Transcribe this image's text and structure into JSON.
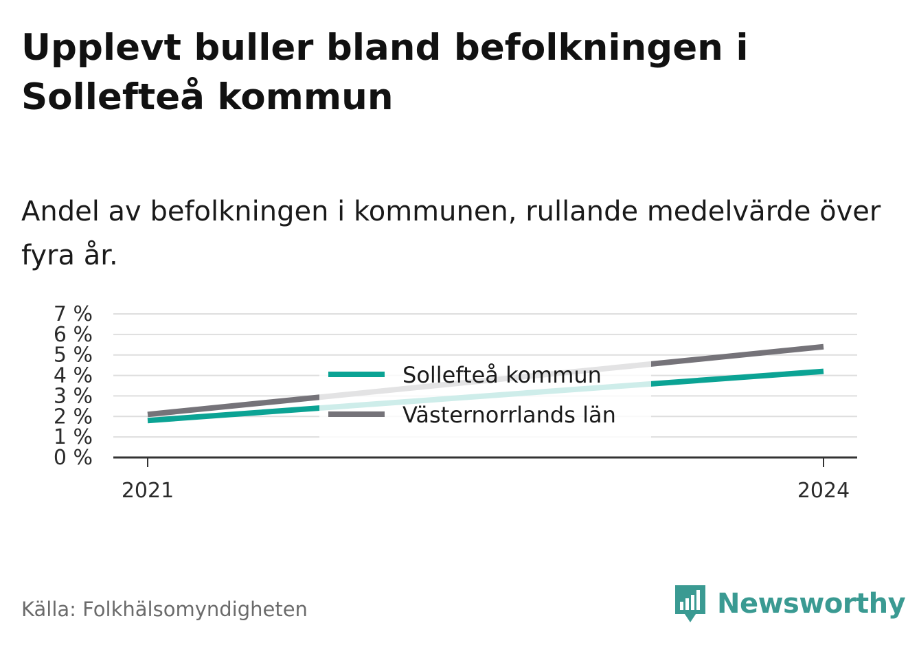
{
  "title": "Upplevt buller bland befolkningen i Sollefteå kommun",
  "subtitle": "Andel av befolkningen i kommunen, rullande medelvärde över fyra år.",
  "source": "Källa: Folkhälsomyndigheten",
  "brand": {
    "name": "Newsworthy",
    "icon": "newsworthy-logo-icon",
    "color": "#3a9a92"
  },
  "colors": {
    "grid": "#dedede",
    "axis": "#333333",
    "legend_bg": "#ffffff"
  },
  "chart_data": {
    "type": "line",
    "x": [
      "2021",
      "2024"
    ],
    "x_ticks": [
      "2021",
      "2024"
    ],
    "y_ticks": [
      "0 %",
      "1 %",
      "2 %",
      "3 %",
      "4 %",
      "5 %",
      "6 %",
      "7 %"
    ],
    "ylim": [
      0,
      7
    ],
    "grid": true,
    "legend_position": "center",
    "series": [
      {
        "name": "Sollefteå kommun",
        "values": [
          1.8,
          4.2
        ],
        "color": "#0ba394"
      },
      {
        "name": "Västernorrlands län",
        "values": [
          2.1,
          5.4
        ],
        "color": "#757379"
      }
    ]
  }
}
